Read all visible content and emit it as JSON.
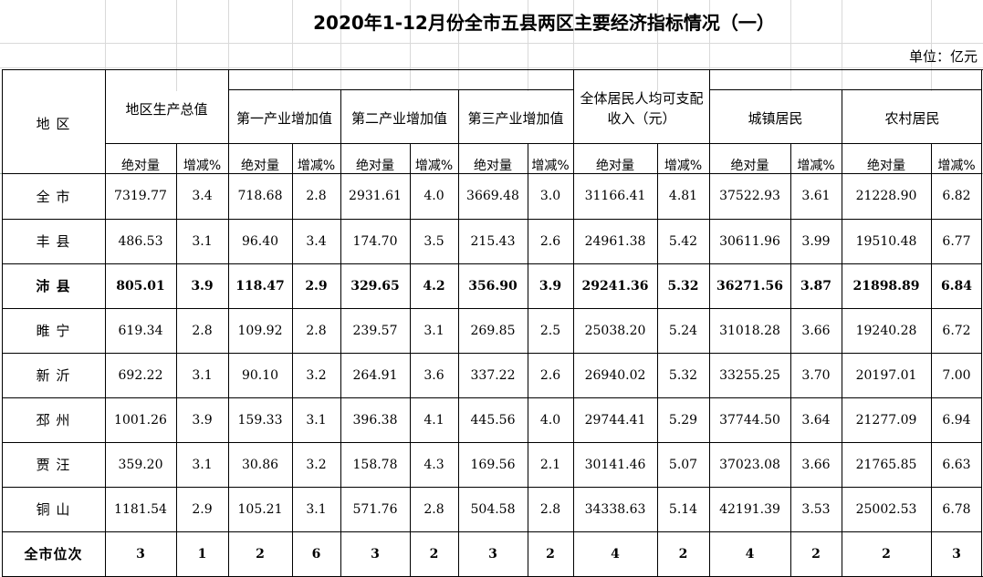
{
  "title": "2020年1-12月份全市五县两区主要经济指标情况（一）",
  "unit": "单位：亿元",
  "headers": {
    "region": "地  区",
    "gdp": "地区生产总值",
    "primary": "第一产业增加值",
    "secondary": "第二产业增加值",
    "tertiary": "第三产业增加值",
    "income": "全体居民人均可支配收入（元）",
    "urban": "城镇居民",
    "rural": "农村居民",
    "abs": "绝对量",
    "pct": "增减%"
  },
  "rows": [
    {
      "region": "全 市",
      "bold": false,
      "values": [
        "7319.77",
        "3.4",
        "718.68",
        "2.8",
        "2931.61",
        "4.0",
        "3669.48",
        "3.0",
        "31166.41",
        "4.81",
        "37522.93",
        "3.61",
        "21228.90",
        "6.82"
      ]
    },
    {
      "region": "丰 县",
      "bold": false,
      "values": [
        "486.53",
        "3.1",
        "96.40",
        "3.4",
        "174.70",
        "3.5",
        "215.43",
        "2.6",
        "24961.38",
        "5.42",
        "30611.96",
        "3.99",
        "19510.48",
        "6.77"
      ]
    },
    {
      "region": "沛 县",
      "bold": true,
      "values": [
        "805.01",
        "3.9",
        "118.47",
        "2.9",
        "329.65",
        "4.2",
        "356.90",
        "3.9",
        "29241.36",
        "5.32",
        "36271.56",
        "3.87",
        "21898.89",
        "6.84"
      ]
    },
    {
      "region": "睢 宁",
      "bold": false,
      "values": [
        "619.34",
        "2.8",
        "109.92",
        "2.8",
        "239.57",
        "3.1",
        "269.85",
        "2.5",
        "25038.20",
        "5.24",
        "31018.28",
        "3.66",
        "19240.28",
        "6.72"
      ]
    },
    {
      "region": "新 沂",
      "bold": false,
      "values": [
        "692.22",
        "3.1",
        "90.10",
        "3.2",
        "264.91",
        "3.6",
        "337.22",
        "2.6",
        "26940.02",
        "5.32",
        "33255.25",
        "3.70",
        "20197.01",
        "7.00"
      ]
    },
    {
      "region": "邳 州",
      "bold": false,
      "values": [
        "1001.26",
        "3.9",
        "159.33",
        "3.1",
        "396.38",
        "4.1",
        "445.56",
        "4.0",
        "29744.41",
        "5.29",
        "37744.50",
        "3.64",
        "21277.09",
        "6.94"
      ]
    },
    {
      "region": "贾 汪",
      "bold": false,
      "values": [
        "359.20",
        "3.1",
        "30.86",
        "3.2",
        "158.78",
        "4.3",
        "169.56",
        "2.1",
        "30141.46",
        "5.07",
        "37023.08",
        "3.66",
        "21765.85",
        "6.63"
      ]
    },
    {
      "region": "铜 山",
      "bold": false,
      "values": [
        "1181.54",
        "2.9",
        "105.21",
        "3.1",
        "571.76",
        "2.8",
        "504.58",
        "2.8",
        "34338.63",
        "5.14",
        "42191.39",
        "3.53",
        "25002.53",
        "6.78"
      ]
    },
    {
      "region": "全市位次",
      "bold": true,
      "values": [
        "3",
        "1",
        "2",
        "6",
        "3",
        "2",
        "3",
        "2",
        "4",
        "2",
        "4",
        "2",
        "2",
        "3"
      ]
    }
  ]
}
